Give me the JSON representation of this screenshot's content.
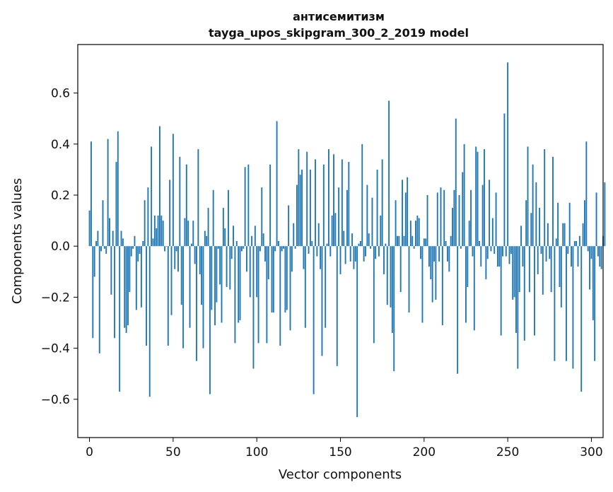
{
  "chart_data": {
    "type": "bar",
    "title": "антисемитизм",
    "subtitle": "tayga_upos_skipgram_300_2_2019 model",
    "xlabel": "Vector components",
    "ylabel": "Components values",
    "xlim": [
      -7,
      307
    ],
    "ylim": [
      -0.75,
      0.79
    ],
    "x_ticks": [
      0,
      50,
      100,
      150,
      200,
      250,
      300
    ],
    "y_ticks": [
      -0.6,
      -0.4,
      -0.2,
      0.0,
      0.2,
      0.4,
      0.6
    ],
    "y_tick_labels": [
      "−0.6",
      "−0.4",
      "−0.2",
      "0.0",
      "0.2",
      "0.4",
      "0.6"
    ],
    "grid": false,
    "bar_color": "#1f77b4",
    "values": [
      0.14,
      0.41,
      -0.36,
      -0.12,
      0.02,
      0.06,
      -0.42,
      -0.02,
      0.18,
      -0.01,
      -0.03,
      0.42,
      0.11,
      -0.19,
      0.06,
      -0.36,
      0.33,
      0.45,
      -0.57,
      0.06,
      0.03,
      -0.32,
      -0.34,
      -0.31,
      -0.18,
      -0.04,
      -0.01,
      0.04,
      -0.25,
      -0.06,
      -0.03,
      -0.24,
      0.02,
      0.18,
      -0.39,
      0.23,
      -0.59,
      0.39,
      0.03,
      0.12,
      0.07,
      0.12,
      0.47,
      0.12,
      0.1,
      -0.02,
      0.0,
      -0.39,
      0.26,
      -0.27,
      0.44,
      -0.09,
      -0.02,
      -0.1,
      0.35,
      -0.23,
      -0.4,
      0.11,
      0.32,
      0.1,
      -0.32,
      0.01,
      0.1,
      -0.07,
      -0.45,
      0.38,
      -0.11,
      -0.23,
      -0.4,
      0.06,
      0.04,
      0.15,
      -0.58,
      -0.25,
      0.22,
      -0.31,
      -0.22,
      -0.01,
      -0.15,
      -0.3,
      0.15,
      0.07,
      -0.16,
      0.22,
      -0.17,
      -0.05,
      0.08,
      -0.38,
      0.02,
      -0.3,
      -0.29,
      -0.02,
      -0.01,
      0.31,
      -0.1,
      0.32,
      -0.2,
      0.04,
      -0.48,
      0.08,
      -0.2,
      -0.38,
      -0.02,
      0.23,
      0.05,
      -0.06,
      -0.38,
      -0.13,
      0.32,
      -0.26,
      -0.26,
      -0.02,
      0.49,
      0.02,
      -0.39,
      -0.02,
      -0.01,
      -0.26,
      -0.25,
      0.16,
      -0.33,
      -0.1,
      0.09,
      -0.01,
      0.24,
      0.38,
      0.28,
      0.3,
      -0.09,
      -0.32,
      0.37,
      -0.03,
      0.3,
      0.02,
      -0.58,
      0.34,
      -0.04,
      0.09,
      -0.09,
      -0.43,
      0.32,
      -0.32,
      0.01,
      0.38,
      -0.04,
      0.12,
      0.36,
      0.13,
      -0.47,
      0.23,
      -0.11,
      0.34,
      0.06,
      -0.07,
      0.22,
      0.33,
      -0.06,
      0.05,
      -0.09,
      -0.06,
      -0.67,
      0.01,
      0.02,
      0.4,
      -0.06,
      -0.04,
      0.24,
      0.05,
      -0.01,
      0.19,
      -0.38,
      -0.05,
      0.3,
      -0.04,
      0.12,
      0.34,
      -0.11,
      0.01,
      -0.23,
      0.57,
      -0.24,
      -0.34,
      -0.49,
      0.18,
      0.04,
      0.04,
      -0.18,
      0.26,
      0.04,
      0.21,
      0.27,
      -0.26,
      0.1,
      0.04,
      -0.01,
      0.1,
      0.12,
      0.11,
      -0.05,
      -0.3,
      0.03,
      0.03,
      0.2,
      -0.08,
      -0.13,
      -0.22,
      -0.06,
      -0.21,
      0.21,
      -0.06,
      0.23,
      -0.31,
      0.22,
      0.02,
      -0.06,
      -0.1,
      0.04,
      0.15,
      0.22,
      0.5,
      -0.5,
      0.2,
      -0.01,
      0.29,
      0.4,
      -0.3,
      -0.16,
      0.1,
      0.22,
      -0.04,
      -0.33,
      0.39,
      0.37,
      0.02,
      -0.08,
      0.24,
      0.38,
      -0.13,
      -0.05,
      0.26,
      -0.02,
      0.11,
      -0.03,
      0.21,
      -0.08,
      -0.08,
      -0.35,
      -0.04,
      0.52,
      -0.04,
      0.72,
      -0.07,
      -0.03,
      -0.21,
      -0.2,
      -0.34,
      -0.48,
      -0.18,
      0.08,
      -0.08,
      -0.37,
      0.18,
      0.39,
      -0.18,
      0.13,
      0.32,
      -0.35,
      0.25,
      -0.11,
      0.15,
      -0.03,
      -0.19,
      0.38,
      -0.06,
      0.09,
      -0.05,
      -0.18,
      0.35,
      -0.45,
      0.03,
      0.17,
      -0.16,
      -0.24,
      0.09,
      0.09,
      -0.45,
      -0.03,
      0.17,
      -0.08,
      -0.48,
      0.02,
      0.02,
      -0.08,
      0.04,
      -0.57,
      0.09,
      0.18,
      0.41,
      -0.02,
      -0.17,
      -0.05,
      -0.29,
      -0.45,
      0.21,
      -0.04,
      -0.08,
      -0.09,
      0.04,
      0.25
    ]
  }
}
